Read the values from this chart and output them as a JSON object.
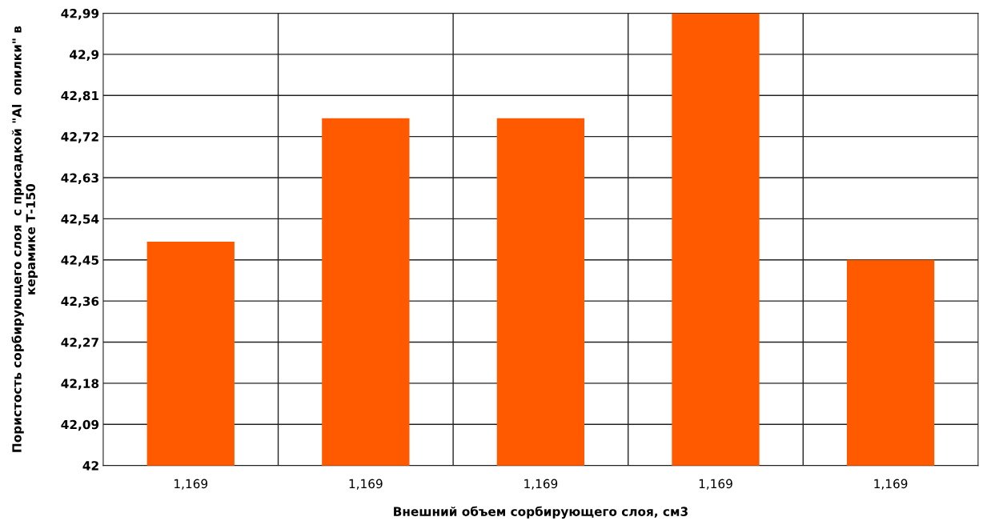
{
  "chart_data": {
    "type": "bar",
    "xlabel": "Внешний объем сорбирующего слоя, см3",
    "ylabel": "Пористость сорбирующего слоя  с присадкой \"Al  опилки\" в керамике Т-150",
    "categories": [
      "1,169",
      "1,169",
      "1,169",
      "1,169",
      "1,169"
    ],
    "values": [
      42.49,
      42.76,
      42.76,
      42.99,
      42.45
    ],
    "color": "#ff5a00",
    "ylim": [
      42,
      42.99
    ],
    "yticks": [
      42,
      {
        "value": 42.09,
        "label": "42,09"
      },
      {
        "value": 42.18,
        "label": "42,18"
      },
      {
        "value": 42.27,
        "label": "42,27"
      },
      {
        "value": 42.36,
        "label": "42,36"
      },
      {
        "value": 42.45,
        "label": "42,45"
      },
      {
        "value": 42.54,
        "label": "42,54"
      },
      {
        "value": 42.63,
        "label": "42,63"
      },
      {
        "value": 42.72,
        "label": "42,72"
      },
      {
        "value": 42.81,
        "label": "42,81"
      },
      {
        "value": 42.9,
        "label": "42,9"
      },
      {
        "value": 42.99,
        "label": "42,99"
      }
    ],
    "grid": true
  }
}
